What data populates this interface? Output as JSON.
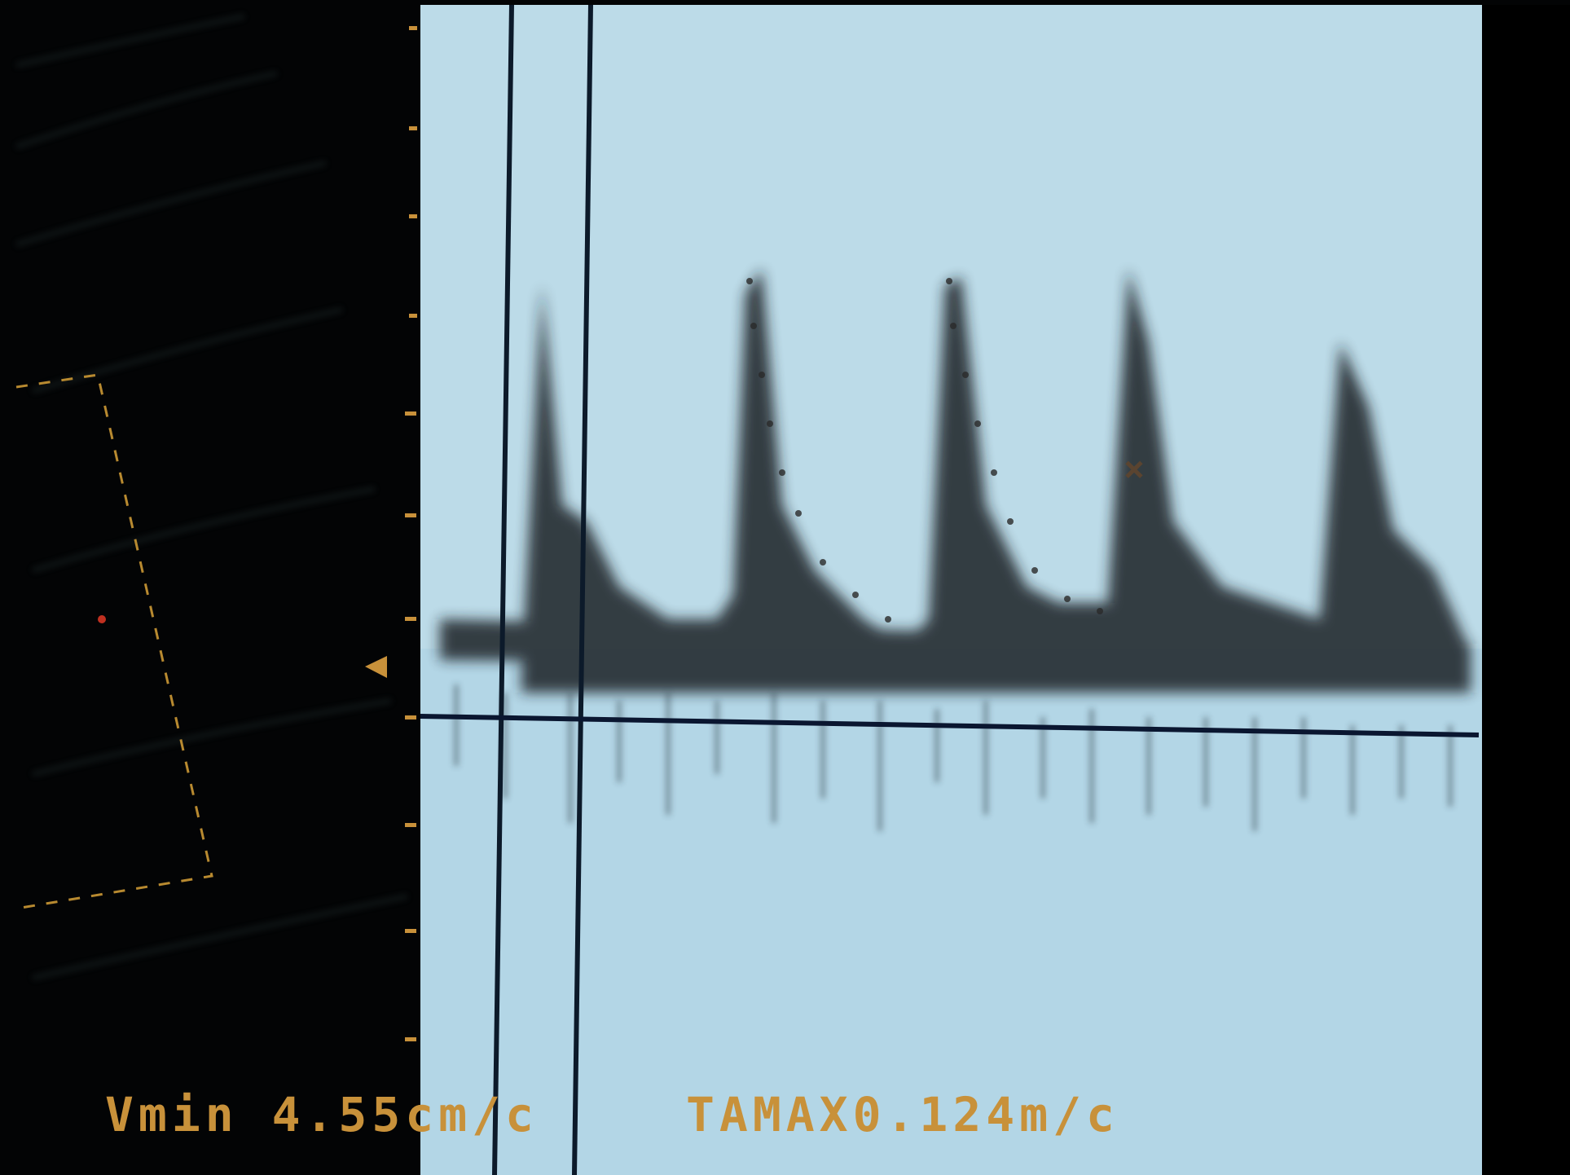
{
  "labels": {
    "vmin": "Vmin 4.55cm/c",
    "tamax": "TAMAX0.124m/c"
  }
}
